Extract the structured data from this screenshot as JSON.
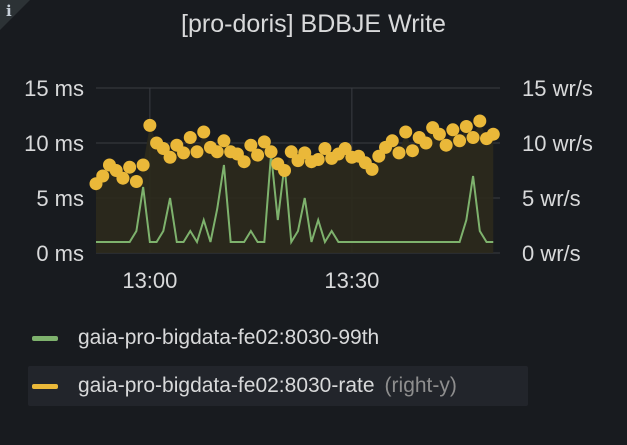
{
  "panel": {
    "title": "[pro-doris] BDBJE Write",
    "info_glyph": "i"
  },
  "colors": {
    "series1": "#7eb26d",
    "series2": "#eab839",
    "grid": "#3a3d42",
    "fill": "#2c2a1c"
  },
  "chart_data": {
    "type": "line",
    "title": "[pro-doris] BDBJE Write",
    "x_ticks": [
      "13:00",
      "13:30"
    ],
    "x_range": [
      "12:52",
      "13:52"
    ],
    "y_left": {
      "ticks": [
        "0 ms",
        "5 ms",
        "10 ms",
        "15 ms"
      ],
      "range": [
        0,
        15
      ],
      "unit": "ms"
    },
    "y_right": {
      "ticks": [
        "0 wr/s",
        "5 wr/s",
        "10 wr/s",
        "15 wr/s"
      ],
      "range": [
        0,
        15
      ],
      "unit": "wr/s"
    },
    "grid": true,
    "legend_position": "bottom",
    "series": [
      {
        "name": "gaia-pro-bigdata-fe02:8030-99th",
        "axis": "left",
        "style": "line",
        "color": "#7eb26d",
        "x": [
          "12:52",
          "12:54",
          "12:55",
          "12:56",
          "12:57",
          "12:58",
          "12:59",
          "13:00",
          "13:01",
          "13:02",
          "13:03",
          "13:04",
          "13:05",
          "13:06",
          "13:07",
          "13:08",
          "13:09",
          "13:10",
          "13:11",
          "13:12",
          "13:13",
          "13:14",
          "13:15",
          "13:16",
          "13:17",
          "13:18",
          "13:19",
          "13:20",
          "13:21",
          "13:22",
          "13:23",
          "13:24",
          "13:25",
          "13:26",
          "13:27",
          "13:28",
          "13:29",
          "13:30",
          "13:31",
          "13:32",
          "13:33",
          "13:34",
          "13:35",
          "13:36",
          "13:37",
          "13:38",
          "13:39",
          "13:40",
          "13:41",
          "13:42",
          "13:43",
          "13:44",
          "13:45",
          "13:46",
          "13:47",
          "13:48",
          "13:49",
          "13:50",
          "13:51"
        ],
        "values": [
          1,
          1,
          1,
          1,
          1,
          2,
          6,
          1,
          1,
          2,
          5,
          1,
          1,
          2,
          1,
          3,
          1,
          4,
          8,
          1,
          1,
          1,
          2,
          1,
          1,
          9,
          3,
          8,
          1,
          2,
          5,
          1,
          3,
          1,
          2,
          1,
          1,
          1,
          1,
          1,
          1,
          1,
          1,
          1,
          1,
          1,
          1,
          1,
          1,
          1,
          1,
          1,
          1,
          1,
          3,
          7,
          2,
          1,
          1
        ]
      },
      {
        "name": "gaia-pro-bigdata-fe02:8030-rate",
        "axis": "right",
        "suffix": "(right-y)",
        "style": "points",
        "color": "#eab839",
        "x": [
          "12:52",
          "12:53",
          "12:54",
          "12:55",
          "12:56",
          "12:57",
          "12:58",
          "12:59",
          "13:00",
          "13:01",
          "13:02",
          "13:03",
          "13:04",
          "13:05",
          "13:06",
          "13:07",
          "13:08",
          "13:09",
          "13:10",
          "13:11",
          "13:12",
          "13:13",
          "13:14",
          "13:15",
          "13:16",
          "13:17",
          "13:18",
          "13:19",
          "13:20",
          "13:21",
          "13:22",
          "13:23",
          "13:24",
          "13:25",
          "13:26",
          "13:27",
          "13:28",
          "13:29",
          "13:30",
          "13:31",
          "13:32",
          "13:33",
          "13:34",
          "13:35",
          "13:36",
          "13:37",
          "13:38",
          "13:39",
          "13:40",
          "13:41",
          "13:42",
          "13:43",
          "13:44",
          "13:45",
          "13:46",
          "13:47",
          "13:48",
          "13:49",
          "13:50",
          "13:51"
        ],
        "values": [
          6.3,
          7,
          8,
          7.5,
          6.8,
          7.8,
          6.5,
          8,
          11.6,
          10,
          9.5,
          8.7,
          9.8,
          9.1,
          10.5,
          9.2,
          11,
          9.6,
          9.2,
          10.2,
          9.2,
          9,
          8.3,
          9.8,
          8.9,
          10.1,
          9.2,
          8.1,
          7.5,
          9.2,
          8.4,
          9.1,
          8.3,
          8.5,
          9.5,
          8.6,
          9,
          9.5,
          8.7,
          8.8,
          8.2,
          7.6,
          8.8,
          9.6,
          10.2,
          9.1,
          11,
          9.3,
          10.5,
          10,
          11.4,
          10.8,
          9.8,
          11.2,
          10.2,
          11.5,
          10.5,
          12,
          10.4,
          10.8
        ]
      }
    ]
  },
  "legend": [
    {
      "label": "gaia-pro-bigdata-fe02:8030-99th",
      "suffix": "",
      "color": "#7eb26d"
    },
    {
      "label": "gaia-pro-bigdata-fe02:8030-rate",
      "suffix": "(right-y)",
      "color": "#eab839"
    }
  ]
}
